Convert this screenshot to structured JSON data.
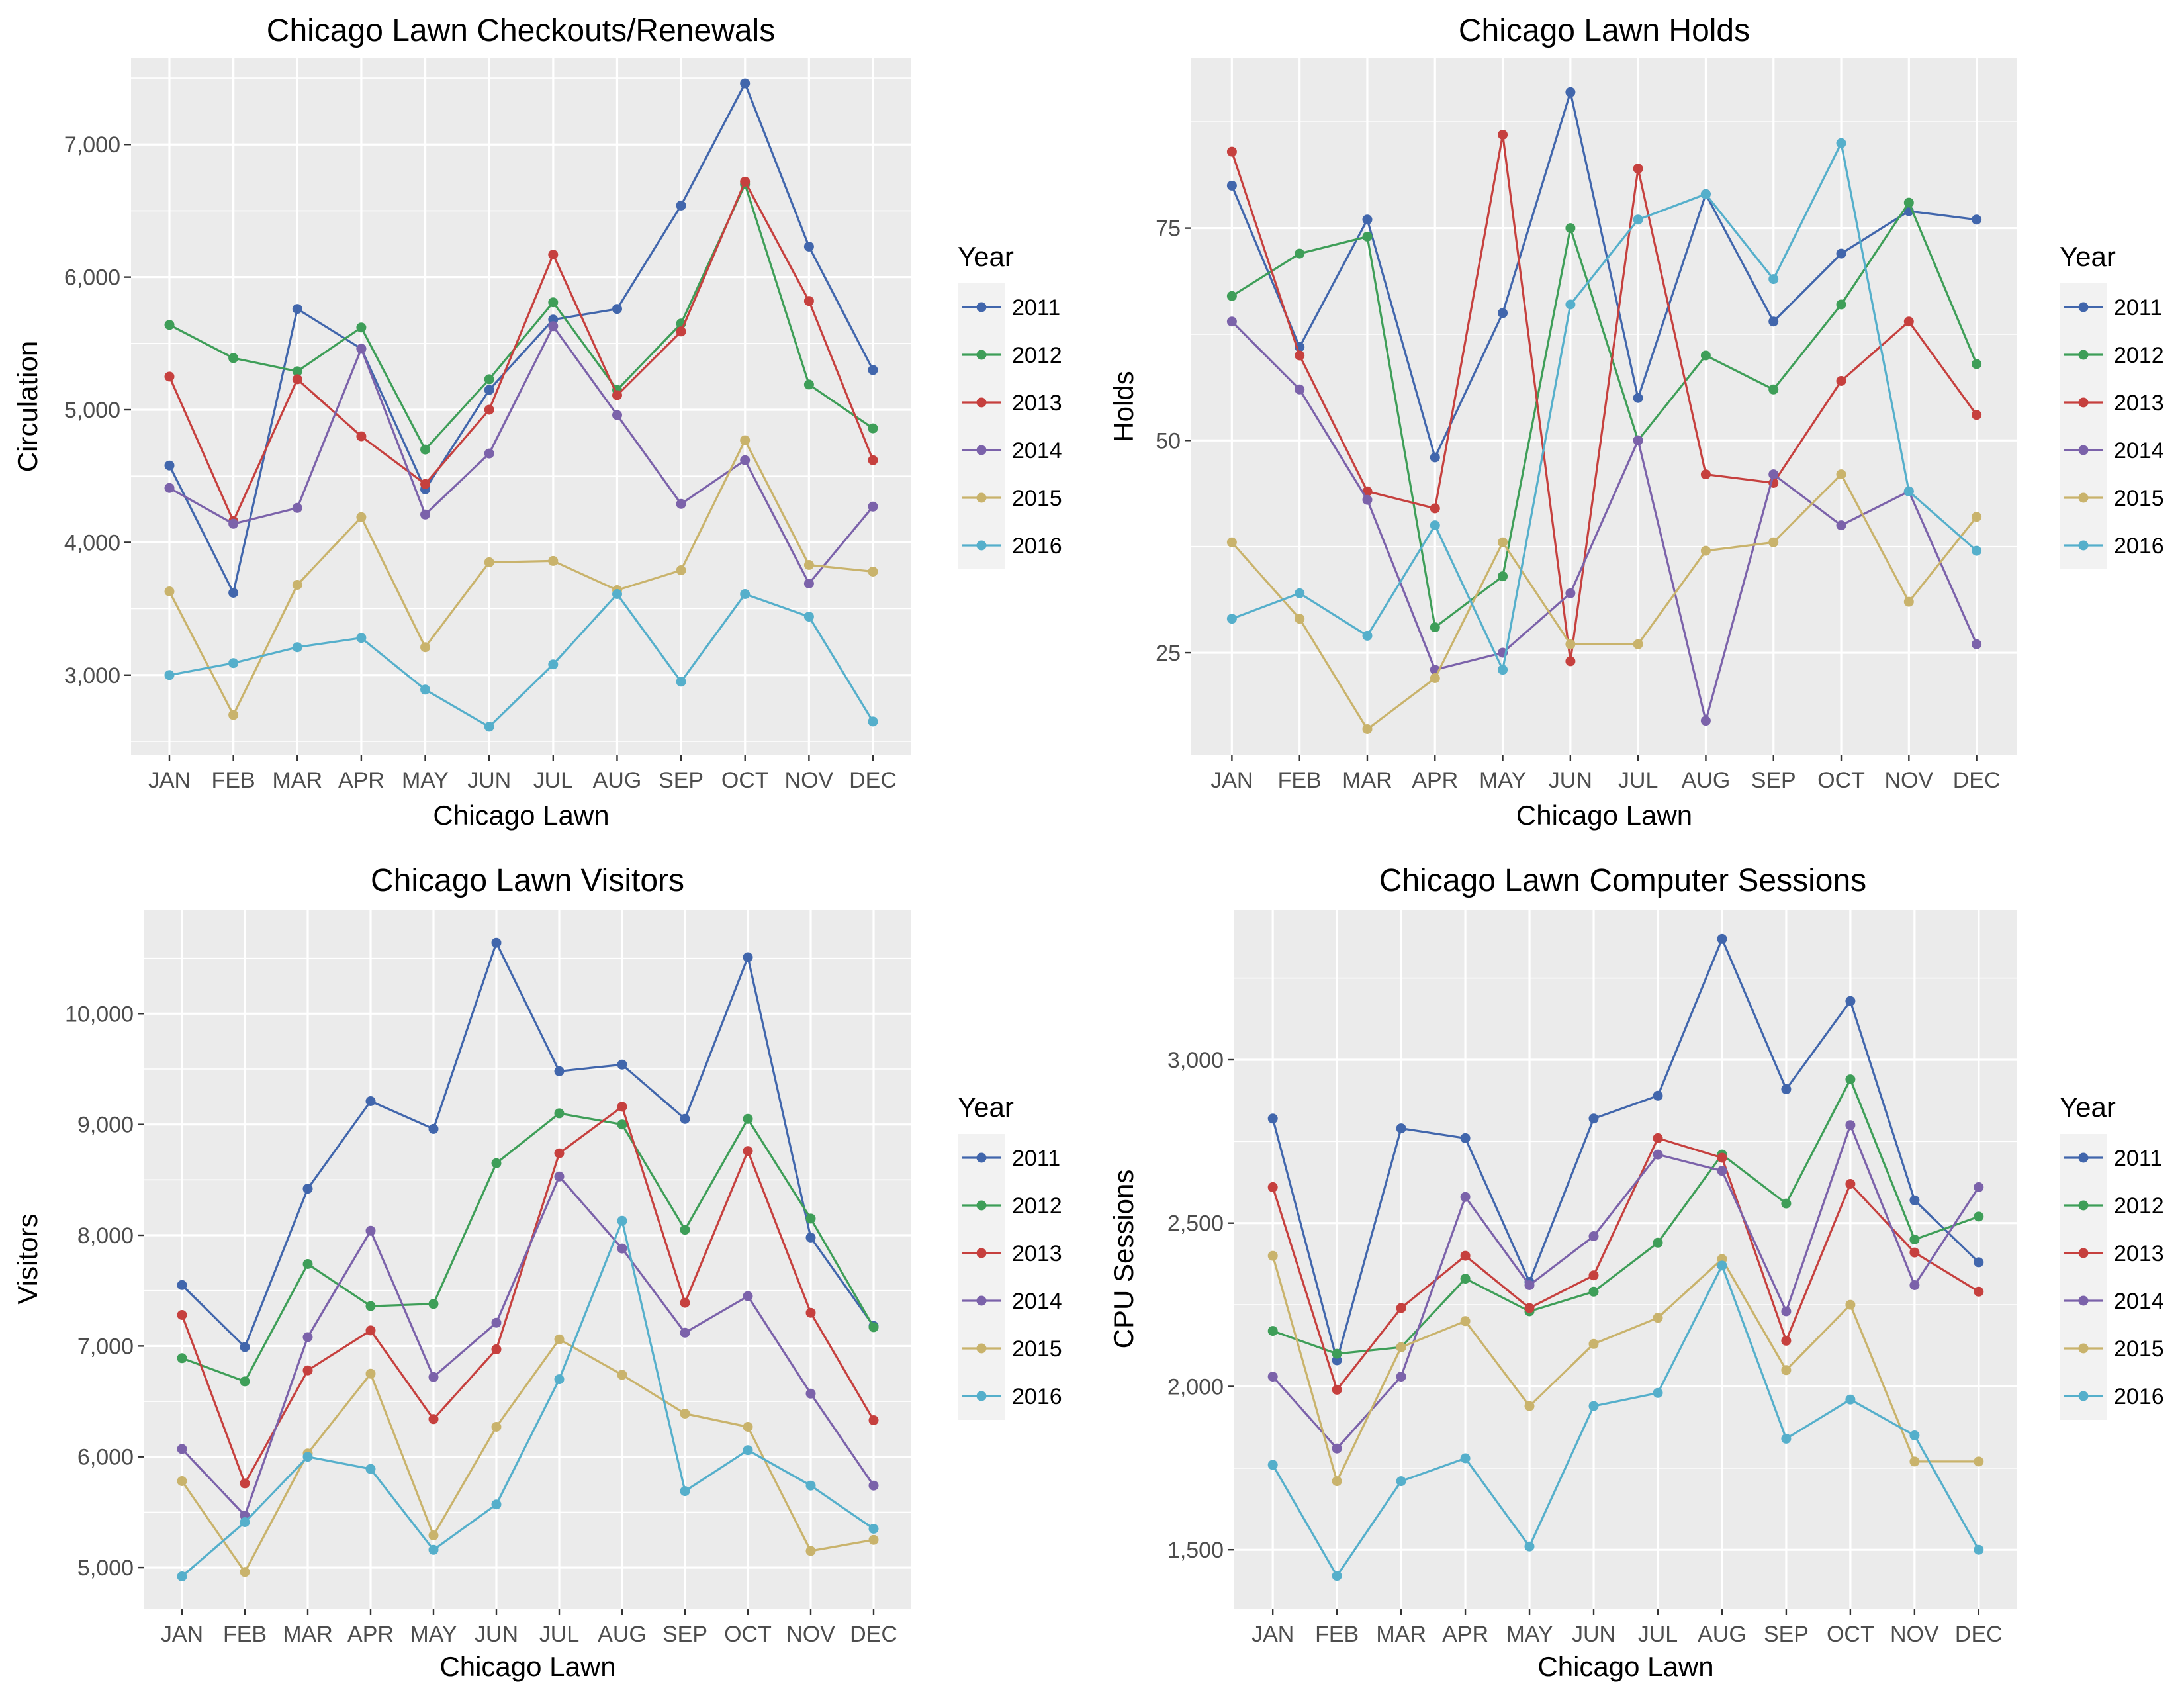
{
  "legend_title": "Year",
  "months": [
    "JAN",
    "FEB",
    "MAR",
    "APR",
    "MAY",
    "JUN",
    "JUL",
    "AUG",
    "SEP",
    "OCT",
    "NOV",
    "DEC"
  ],
  "years": [
    "2011",
    "2012",
    "2013",
    "2014",
    "2015",
    "2016"
  ],
  "colors": {
    "2011": "#4166AC",
    "2012": "#3E9E58",
    "2013": "#C6403E",
    "2014": "#7B62AA",
    "2015": "#C9B36C",
    "2016": "#55AFCB",
    "panel": "#EBEBEB",
    "grid": "#FFFFFF"
  },
  "chart_data": [
    {
      "id": "checkouts",
      "type": "line",
      "title": "Chicago Lawn Checkouts/Renewals",
      "xlabel": "Chicago Lawn",
      "ylabel": "Circulation",
      "ylim": [
        2400,
        7650
      ],
      "yticks": [
        3000,
        4000,
        5000,
        6000,
        7000
      ],
      "ytick_labels": [
        "3,000",
        "4,000",
        "5,000",
        "6,000",
        "7,000"
      ],
      "legend": "right",
      "grid": true,
      "series": [
        {
          "name": "2011",
          "values": [
            4580,
            3620,
            5760,
            5460,
            4400,
            5150,
            5680,
            5760,
            6540,
            7460,
            6230,
            5300
          ]
        },
        {
          "name": "2012",
          "values": [
            5640,
            5390,
            5290,
            5620,
            4700,
            5230,
            5810,
            5150,
            5650,
            6700,
            5190,
            4860
          ]
        },
        {
          "name": "2013",
          "values": [
            5250,
            4160,
            5230,
            4800,
            4440,
            5000,
            6170,
            5110,
            5590,
            6720,
            5820,
            4620
          ]
        },
        {
          "name": "2014",
          "values": [
            4410,
            4140,
            4260,
            5460,
            4210,
            4670,
            5630,
            4960,
            4290,
            4620,
            3690,
            4270
          ]
        },
        {
          "name": "2015",
          "values": [
            3630,
            2700,
            3680,
            4190,
            3210,
            3850,
            3860,
            3640,
            3790,
            4770,
            3830,
            3780
          ]
        },
        {
          "name": "2016",
          "values": [
            3000,
            3090,
            3210,
            3280,
            2890,
            2610,
            3080,
            3610,
            2950,
            3610,
            3440,
            2650
          ]
        }
      ]
    },
    {
      "id": "holds",
      "type": "line",
      "title": "Chicago Lawn Holds",
      "xlabel": "Chicago Lawn",
      "ylabel": "Holds",
      "ylim": [
        13,
        95
      ],
      "yticks": [
        25,
        50,
        75
      ],
      "ytick_labels": [
        "25",
        "50",
        "75"
      ],
      "legend": "right",
      "grid": true,
      "series": [
        {
          "name": "2011",
          "values": [
            80,
            61,
            76,
            48,
            65,
            91,
            55,
            79,
            64,
            72,
            77,
            76
          ]
        },
        {
          "name": "2012",
          "values": [
            67,
            72,
            74,
            28,
            34,
            75,
            50,
            60,
            56,
            66,
            78,
            59
          ]
        },
        {
          "name": "2013",
          "values": [
            84,
            60,
            44,
            42,
            86,
            24,
            82,
            46,
            45,
            57,
            64,
            53
          ]
        },
        {
          "name": "2014",
          "values": [
            64,
            56,
            43,
            23,
            25,
            32,
            50,
            17,
            46,
            40,
            44,
            26
          ]
        },
        {
          "name": "2015",
          "values": [
            38,
            29,
            16,
            22,
            38,
            26,
            26,
            37,
            38,
            46,
            31,
            41
          ]
        },
        {
          "name": "2016",
          "values": [
            29,
            32,
            27,
            40,
            23,
            66,
            76,
            79,
            69,
            85,
            44,
            37
          ]
        }
      ]
    },
    {
      "id": "visitors",
      "type": "line",
      "title": "Chicago Lawn Visitors",
      "xlabel": "Chicago Lawn",
      "ylabel": "Visitors",
      "ylim": [
        4630,
        10940
      ],
      "yticks": [
        5000,
        6000,
        7000,
        8000,
        9000,
        10000
      ],
      "ytick_labels": [
        "5,000",
        "6,000",
        "7,000",
        "8,000",
        "9,000",
        "10,000"
      ],
      "legend": "right",
      "grid": true,
      "series": [
        {
          "name": "2011",
          "values": [
            7550,
            6990,
            8420,
            9210,
            8960,
            10640,
            9480,
            9540,
            9050,
            10510,
            7980,
            7180
          ]
        },
        {
          "name": "2012",
          "values": [
            6890,
            6680,
            7740,
            7360,
            7380,
            8650,
            9100,
            9000,
            8050,
            9050,
            8150,
            7170
          ]
        },
        {
          "name": "2013",
          "values": [
            7280,
            5760,
            6780,
            7140,
            6340,
            6970,
            8740,
            9160,
            7390,
            8760,
            7300,
            6330
          ]
        },
        {
          "name": "2014",
          "values": [
            6070,
            5470,
            7080,
            8040,
            6720,
            7210,
            8530,
            7880,
            7120,
            7450,
            6570,
            5740
          ]
        },
        {
          "name": "2015",
          "values": [
            5780,
            4960,
            6030,
            6750,
            5290,
            6270,
            7060,
            6740,
            6390,
            6270,
            5150,
            5250
          ]
        },
        {
          "name": "2016",
          "values": [
            4920,
            5410,
            6000,
            5890,
            5160,
            5570,
            6700,
            8130,
            5690,
            6060,
            5740,
            5350
          ]
        }
      ]
    },
    {
      "id": "cpu",
      "type": "line",
      "title": "Chicago Lawn Computer Sessions",
      "xlabel": "Chicago Lawn",
      "ylabel": "CPU Sessions",
      "ylim": [
        1320,
        3460
      ],
      "yticks": [
        1500,
        2000,
        2500,
        3000
      ],
      "ytick_labels": [
        "1,500",
        "2,000",
        "2,500",
        "3,000"
      ],
      "legend": "right",
      "grid": true,
      "series": [
        {
          "name": "2011",
          "values": [
            2820,
            2080,
            2790,
            2760,
            2320,
            2820,
            2890,
            3370,
            2910,
            3180,
            2570,
            2380
          ]
        },
        {
          "name": "2012",
          "values": [
            2170,
            2100,
            2120,
            2330,
            2230,
            2290,
            2440,
            2710,
            2560,
            2940,
            2450,
            2520
          ]
        },
        {
          "name": "2013",
          "values": [
            2610,
            1990,
            2240,
            2400,
            2240,
            2340,
            2760,
            2700,
            2140,
            2620,
            2410,
            2290
          ]
        },
        {
          "name": "2014",
          "values": [
            2030,
            1810,
            2030,
            2580,
            2310,
            2460,
            2710,
            2660,
            2230,
            2800,
            2310,
            2610
          ]
        },
        {
          "name": "2015",
          "values": [
            2400,
            1710,
            2120,
            2200,
            1940,
            2130,
            2210,
            2390,
            2050,
            2250,
            1770,
            1770
          ]
        },
        {
          "name": "2016",
          "values": [
            1760,
            1420,
            1710,
            1780,
            1510,
            1940,
            1980,
            2370,
            1840,
            1960,
            1850,
            1500
          ]
        }
      ]
    }
  ]
}
